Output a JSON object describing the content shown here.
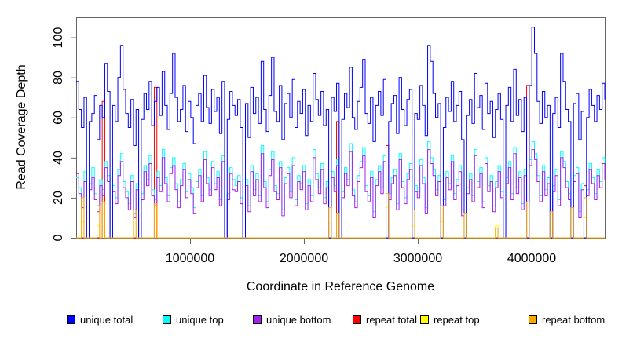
{
  "figure": {
    "background": "#ffffff",
    "axis_color": "#666666",
    "text_color": "#000000"
  },
  "chart_data": {
    "type": "line",
    "style": "step",
    "title": "",
    "xlabel": "Coordinate in Reference Genome",
    "ylabel": "Read Coverage Depth",
    "x_axis": {
      "min": 0,
      "max": 4641652,
      "ticks": [
        1000000,
        2000000,
        3000000,
        4000000
      ],
      "tick_labels": [
        "1000000",
        "2000000",
        "3000000",
        "4000000"
      ]
    },
    "y_axis": {
      "min": 0,
      "max": 110,
      "ticks": [
        0,
        20,
        40,
        60,
        80,
        100
      ],
      "tick_labels": [
        "0",
        "20",
        "40",
        "60",
        "80",
        "100"
      ]
    },
    "n_points": 204,
    "draw_order": [
      "repeat top",
      "repeat total",
      "unique top",
      "unique bottom",
      "unique total",
      "repeat bottom"
    ],
    "series": [
      {
        "name": "unique total",
        "color": "#0000FF",
        "values": [
          78,
          64,
          55,
          70,
          0,
          58,
          62,
          71,
          49,
          66,
          60,
          87,
          73,
          0,
          66,
          58,
          80,
          96,
          74,
          62,
          55,
          69,
          46,
          64,
          0,
          59,
          72,
          64,
          78,
          56,
          68,
          75,
          61,
          83,
          66,
          54,
          72,
          92,
          70,
          58,
          64,
          76,
          53,
          68,
          60,
          47,
          66,
          72,
          58,
          81,
          65,
          57,
          74,
          63,
          70,
          52,
          78,
          0,
          59,
          73,
          66,
          61,
          69,
          55,
          0,
          67,
          50,
          75,
          62,
          70,
          57,
          88,
          64,
          53,
          71,
          90,
          63,
          58,
          76,
          49,
          67,
          72,
          60,
          79,
          55,
          68,
          62,
          74,
          51,
          66,
          58,
          82,
          69,
          61,
          73,
          56,
          64,
          0,
          70,
          63,
          77,
          0,
          59,
          72,
          65,
          85,
          60,
          54,
          68,
          75,
          89,
          62,
          57,
          70,
          48,
          66,
          73,
          61,
          79,
          0,
          58,
          67,
          71,
          52,
          80,
          64,
          56,
          69,
          74,
          0,
          62,
          59,
          76,
          66,
          51,
          96,
          88,
          72,
          60,
          67,
          0,
          55,
          70,
          63,
          78,
          58,
          66,
          73,
          49,
          0,
          61,
          69,
          57,
          82,
          65,
          71,
          54,
          77,
          62,
          68,
          50,
          64,
          72,
          59,
          0,
          66,
          75,
          58,
          84,
          61,
          69,
          53,
          70,
          0,
          76,
          105,
          92,
          68,
          57,
          73,
          60,
          66,
          0,
          62,
          70,
          55,
          92,
          78,
          64,
          58,
          0,
          67,
          72,
          49,
          63,
          0,
          60,
          74,
          66,
          58,
          71,
          64,
          77,
          69
        ]
      },
      {
        "name": "unique top",
        "color": "#00FFFF",
        "values": [
          30,
          25,
          18,
          33,
          0,
          27,
          35,
          22,
          16,
          29,
          24,
          38,
          31,
          0,
          26,
          20,
          34,
          42,
          28,
          23,
          17,
          31,
          12,
          27,
          0,
          22,
          36,
          29,
          41,
          24,
          19,
          33,
          26,
          44,
          30,
          21,
          35,
          40,
          27,
          18,
          29,
          37,
          23,
          32,
          25,
          15,
          28,
          34,
          21,
          43,
          30,
          24,
          38,
          27,
          33,
          19,
          41,
          0,
          22,
          35,
          29,
          26,
          31,
          20,
          0,
          29,
          16,
          36,
          24,
          32,
          21,
          46,
          28,
          18,
          34,
          43,
          26,
          22,
          38,
          14,
          30,
          35,
          23,
          40,
          19,
          31,
          27,
          36,
          17,
          29,
          21,
          44,
          32,
          25,
          37,
          20,
          28,
          0,
          33,
          26,
          39,
          0,
          23,
          35,
          29,
          47,
          24,
          18,
          31,
          38,
          45,
          26,
          21,
          33,
          13,
          29,
          36,
          25,
          41,
          0,
          22,
          30,
          34,
          17,
          42,
          28,
          20,
          32,
          37,
          0,
          26,
          23,
          39,
          30,
          15,
          48,
          40,
          34,
          24,
          31,
          0,
          19,
          33,
          27,
          41,
          22,
          29,
          36,
          14,
          0,
          25,
          32,
          21,
          44,
          28,
          35,
          18,
          40,
          26,
          31,
          16,
          28,
          36,
          23,
          0,
          30,
          38,
          22,
          45,
          25,
          33,
          17,
          34,
          0,
          39,
          48,
          42,
          31,
          21,
          36,
          24,
          30,
          0,
          26,
          34,
          19,
          43,
          38,
          28,
          22,
          0,
          31,
          35,
          13,
          27,
          0,
          24,
          37,
          30,
          22,
          34,
          28,
          40,
          32
        ]
      },
      {
        "name": "unique bottom",
        "color": "#A020F0",
        "values": [
          32,
          22,
          15,
          28,
          0,
          24,
          30,
          19,
          13,
          26,
          21,
          35,
          28,
          0,
          23,
          17,
          31,
          38,
          25,
          20,
          14,
          28,
          10,
          24,
          0,
          19,
          33,
          26,
          37,
          21,
          16,
          30,
          23,
          40,
          27,
          18,
          32,
          36,
          24,
          15,
          26,
          34,
          20,
          29,
          22,
          12,
          25,
          31,
          18,
          39,
          27,
          21,
          35,
          24,
          30,
          16,
          38,
          0,
          19,
          32,
          24,
          23,
          28,
          17,
          0,
          26,
          13,
          33,
          21,
          29,
          18,
          42,
          25,
          15,
          31,
          39,
          23,
          19,
          35,
          11,
          27,
          32,
          20,
          36,
          16,
          28,
          24,
          33,
          14,
          26,
          18,
          40,
          29,
          22,
          34,
          17,
          25,
          0,
          30,
          23,
          36,
          0,
          20,
          32,
          26,
          43,
          21,
          15,
          28,
          35,
          41,
          23,
          18,
          30,
          10,
          26,
          33,
          22,
          38,
          0,
          19,
          27,
          31,
          14,
          39,
          25,
          17,
          29,
          34,
          0,
          23,
          20,
          36,
          27,
          12,
          44,
          37,
          31,
          21,
          28,
          0,
          16,
          30,
          24,
          38,
          19,
          26,
          33,
          11,
          0,
          22,
          29,
          18,
          41,
          25,
          32,
          15,
          37,
          23,
          28,
          13,
          25,
          33,
          20,
          0,
          27,
          35,
          19,
          42,
          22,
          30,
          14,
          31,
          0,
          36,
          44,
          39,
          28,
          18,
          33,
          21,
          27,
          0,
          23,
          31,
          16,
          40,
          35,
          25,
          19,
          0,
          28,
          32,
          10,
          24,
          0,
          21,
          34,
          27,
          19,
          31,
          25,
          37,
          29
        ]
      },
      {
        "name": "repeat total",
        "color": "#FF0000",
        "baseline": 0,
        "spikes": [
          {
            "i": 10,
            "v": 68
          },
          {
            "i": 30,
            "v": 75
          },
          {
            "i": 100,
            "v": 58
          },
          {
            "i": 119,
            "v": 46
          },
          {
            "i": 173,
            "v": 76
          },
          {
            "i": 195,
            "v": 26
          }
        ]
      },
      {
        "name": "repeat top",
        "color": "#FFFF00",
        "baseline": 0,
        "spikes": [
          {
            "i": 2,
            "v": 8
          },
          {
            "i": 8,
            "v": 6
          },
          {
            "i": 10,
            "v": 12
          },
          {
            "i": 22,
            "v": 7
          },
          {
            "i": 30,
            "v": 14
          },
          {
            "i": 97,
            "v": 7
          },
          {
            "i": 100,
            "v": 5
          },
          {
            "i": 119,
            "v": 15
          },
          {
            "i": 129,
            "v": 6
          },
          {
            "i": 140,
            "v": 8
          },
          {
            "i": 149,
            "v": 5
          },
          {
            "i": 161,
            "v": 6
          },
          {
            "i": 173,
            "v": 14
          },
          {
            "i": 182,
            "v": 7
          },
          {
            "i": 190,
            "v": 5
          },
          {
            "i": 195,
            "v": 10
          }
        ]
      },
      {
        "name": "repeat bottom",
        "color": "#FFA500",
        "baseline": 0,
        "spikes": [
          {
            "i": 2,
            "v": 20
          },
          {
            "i": 8,
            "v": 16
          },
          {
            "i": 10,
            "v": 18
          },
          {
            "i": 22,
            "v": 14
          },
          {
            "i": 30,
            "v": 17
          },
          {
            "i": 97,
            "v": 15
          },
          {
            "i": 100,
            "v": 12
          },
          {
            "i": 119,
            "v": 22
          },
          {
            "i": 129,
            "v": 14
          },
          {
            "i": 140,
            "v": 16
          },
          {
            "i": 149,
            "v": 12
          },
          {
            "i": 161,
            "v": 5
          },
          {
            "i": 173,
            "v": 18
          },
          {
            "i": 182,
            "v": 13
          },
          {
            "i": 190,
            "v": 15
          },
          {
            "i": 195,
            "v": 20
          }
        ]
      }
    ],
    "legend": {
      "position": "bottom",
      "items": [
        "unique total",
        "unique top",
        "unique bottom",
        "repeat total",
        "repeat top",
        "repeat bottom"
      ]
    }
  }
}
